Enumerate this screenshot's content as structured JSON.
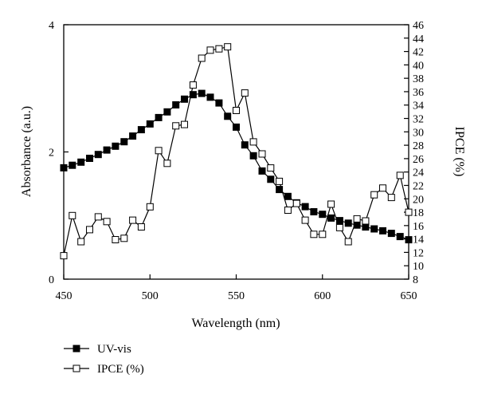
{
  "chart_data": {
    "type": "line",
    "xlabel": "Wavelength (nm)",
    "ylabel_left": "Absorbance (a.u.)",
    "ylabel_right": "IPCE (%)",
    "xlim": [
      450,
      650
    ],
    "ylim_left": [
      0,
      4
    ],
    "ylim_right": [
      8,
      46
    ],
    "x_ticks": [
      450,
      500,
      550,
      600,
      650
    ],
    "y_left_ticks": [
      0,
      2,
      4
    ],
    "y_right_ticks": [
      8,
      10,
      12,
      14,
      16,
      18,
      20,
      22,
      24,
      26,
      28,
      30,
      32,
      34,
      36,
      38,
      40,
      42,
      44,
      46
    ],
    "grid": false,
    "legend_position": "bottom-left",
    "series": [
      {
        "name": "UV-vis",
        "axis": "left",
        "marker": "filled-square",
        "color": "#000000",
        "x": [
          450,
          455,
          460,
          465,
          470,
          475,
          480,
          485,
          490,
          495,
          500,
          505,
          510,
          515,
          520,
          525,
          530,
          535,
          540,
          545,
          550,
          555,
          560,
          565,
          570,
          575,
          580,
          585,
          590,
          595,
          600,
          605,
          610,
          615,
          620,
          625,
          630,
          635,
          640,
          645,
          650
        ],
        "values": [
          1.75,
          1.79,
          1.84,
          1.9,
          1.96,
          2.03,
          2.09,
          2.16,
          2.25,
          2.35,
          2.44,
          2.54,
          2.63,
          2.74,
          2.83,
          2.9,
          2.92,
          2.86,
          2.77,
          2.56,
          2.39,
          2.11,
          1.94,
          1.7,
          1.57,
          1.41,
          1.3,
          1.2,
          1.14,
          1.06,
          1.02,
          0.96,
          0.92,
          0.88,
          0.85,
          0.82,
          0.79,
          0.76,
          0.72,
          0.67,
          0.62
        ]
      },
      {
        "name": "IPCE (%)",
        "axis": "right",
        "marker": "open-square",
        "color": "#000000",
        "x": [
          450,
          455,
          460,
          465,
          470,
          475,
          480,
          485,
          490,
          495,
          500,
          505,
          510,
          515,
          520,
          525,
          530,
          535,
          540,
          545,
          550,
          555,
          560,
          565,
          570,
          575,
          580,
          585,
          590,
          595,
          600,
          605,
          610,
          615,
          620,
          625,
          630,
          635,
          640,
          645,
          650
        ],
        "values": [
          11.5,
          17.5,
          13.6,
          15.4,
          17.3,
          16.6,
          13.9,
          14.1,
          16.8,
          15.8,
          18.8,
          27.2,
          25.3,
          30.9,
          31.1,
          37,
          41,
          42.2,
          42.4,
          42.7,
          33.2,
          35.8,
          28.5,
          26.7,
          24.6,
          22.6,
          18.3,
          19.3,
          16.8,
          14.7,
          14.7,
          19.2,
          15.7,
          13.6,
          17,
          16.7,
          20.6,
          21.6,
          20.2,
          23.5,
          18
        ]
      }
    ]
  }
}
